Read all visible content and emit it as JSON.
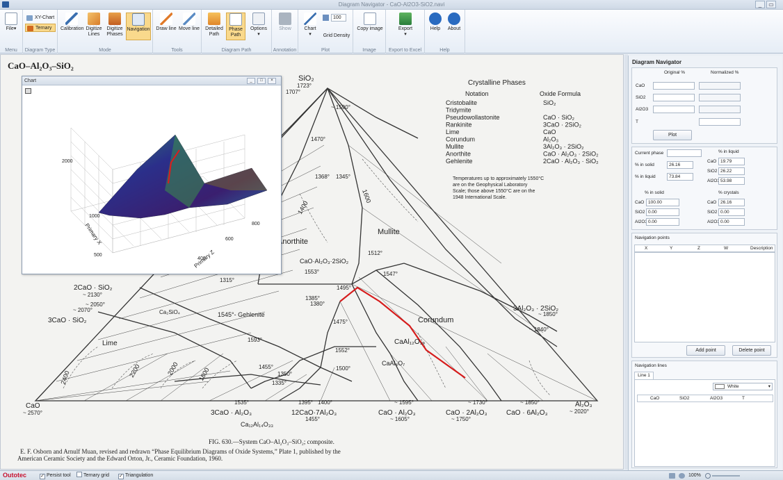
{
  "window": {
    "title": "Diagram Navigator - CaO-Al2O3-SiO2.navi",
    "min": "_",
    "max": "▭"
  },
  "ribbon": {
    "groups": [
      "Menu",
      "Diagram Type",
      "Mode",
      "Tools",
      "Diagram Path",
      "Annotation",
      "Plot",
      "Image",
      "Export to Excel",
      "Help"
    ],
    "file": "File",
    "xy_chart": "XY-Chart",
    "ternary": "Ternary",
    "calibration": "Calibration",
    "digitize_lines": "Digitize Lines",
    "digitize_phases": "Digitize Phases",
    "navigation": "Navigation",
    "draw_line": "Draw line",
    "move_line": "Move line",
    "detailed_path": "Detailed Path",
    "phase_path": "Phase Path",
    "options": "Options",
    "show": "Show",
    "chart": "Chart",
    "grid_density_value": "100",
    "grid_density": "Grid Density",
    "copy_image": "Copy image",
    "export": "Export",
    "help": "Help",
    "about": "About"
  },
  "document": {
    "title": "CaO–Al₂O₃–SiO₂",
    "caption": "FIG. 630.—System CaO–Al₂O₃–SiO₂; composite.",
    "credit1": "E. F. Osborn and Arnulf Muan, revised and redrawn “Phase Equilibrium Diagrams of Oxide Systems,” Plate 1, published by the",
    "credit2": "American Ceramic Society and the Edward Orton, Jr., Ceramic Foundation, 1960.",
    "legend": {
      "heading": "Crystalline Phases",
      "col1": "Notation",
      "col2": "Oxide Formula",
      "rows": [
        [
          "Cristobalite",
          "SiO₂"
        ],
        [
          "Tridymite",
          ""
        ],
        [
          "Pseudowollastonite",
          "CaO · SiO₂"
        ],
        [
          "Rankinite",
          "3CaO · 2SiO₂"
        ],
        [
          "Lime",
          "CaO"
        ],
        [
          "Corundum",
          "Al₂O₃"
        ],
        [
          "Mullite",
          "3Al₂O₃ · 2SiO₂"
        ],
        [
          "Anorthite",
          "CaO · Al₂O₃ · 2SiO₂"
        ],
        [
          "Gehlenite",
          "2CaO · Al₂O₃ · SiO₂"
        ]
      ],
      "note": [
        "Temperatures up to approximately 1550°C",
        "are on the Geophysical Laboratory",
        "Scale; those above 1550°C are on the",
        "1948 International Scale."
      ]
    },
    "labels": {
      "sio2": "SiO₂",
      "sio2_t": "1723°",
      "t1707": "1707°",
      "t1590": "~ 1590°",
      "cao": "CaO",
      "cao_t": "~ 2570°",
      "al2o3": "Al₂O₃",
      "al2o3_t": "~ 2020°",
      "mullite": "Mullite",
      "anorthite": "Anorthite",
      "corundum": "Corundum",
      "lime": "Lime",
      "gehlenite": "1545°- Gehlenite",
      "cas2": "CaO·Al₂O₃·2SiO₂",
      "cs": "2CaO · SiO₂",
      "c3s": "3CaO · SiO₂",
      "c3a": "3CaO · Al₂O₃",
      "c12a7": "12CaO·7Al₂O₃",
      "ca": "CaO · Al₂O₃",
      "ca2": "CaO · 2Al₂O₃",
      "ca6": "CaO · 6Al₂O₃",
      "a3s2": "3Al₂O₃ · 2SiO₂",
      "ca2a": "CaAl₁₂O₁₉",
      "cal4": "CaAl₄O₇",
      "c2s": "Ca₂SiO₄",
      "c12": "Ca₁₂Al₁₄O₃₃",
      "t2130": "~ 2130°",
      "t2050": "~ 2050°",
      "t2070": "~ 2070°",
      "t1850": "~ 1850°",
      "t1840": "~ 1840°",
      "t1730": "~ 1730°",
      "t1750": "~ 1750°",
      "t1605": "~ 1605°",
      "t1595": "~ 1595°",
      "t1535": "1535°",
      "t1395": "1395°",
      "t1400": "1400°",
      "t1455": "1455°",
      "t1512": "1512°",
      "t1547": "1547°",
      "t1495": "1495°",
      "t1385": "1385°",
      "t1380": "1380°",
      "t1475": "1475°",
      "t1552": "1552°",
      "t1500": "1500°",
      "t1553": "1553°",
      "t1315": "1315°",
      "t1368": "1368°",
      "t1345": "1345°",
      "t1470": "1470°",
      "t1593": "1593°",
      "t1335": "1335°",
      "t1350": "1350°",
      "t1455b": "1455°",
      "iso2400": "2400",
      "iso2200": "2200",
      "iso2000": "2000",
      "iso1800": "1800",
      "iso1600": "1600",
      "iso1400": "1400"
    }
  },
  "chart_window": {
    "title": "Chart",
    "min": "_",
    "max": "□",
    "close": "×",
    "z_tick": "2000",
    "x_ticks": [
      "1000",
      "500"
    ],
    "y_ticks": [
      "800",
      "600",
      "400"
    ],
    "x_label": "Primary X",
    "y_label": "Primary Z"
  },
  "panel": {
    "title": "Diagram Navigator",
    "col_original": "Original %",
    "col_normalized": "Normalized %",
    "rows": [
      "CaO",
      "SiO2",
      "Al2O3",
      "T"
    ],
    "plot": "Plot",
    "current_phase": "Current phase",
    "in_solid_label": "% in solid",
    "in_solid": "26.16",
    "in_liquid_label": "% in liquid",
    "in_liquid": "73.84",
    "liquid_head": "% in liquid",
    "liquid": [
      [
        "CaO",
        "19.79"
      ],
      [
        "SiO2",
        "26.22"
      ],
      [
        "Al2O3",
        "53.98"
      ]
    ],
    "solid_head": "% in solid",
    "solid": [
      [
        "CaO",
        "100.00"
      ],
      [
        "SiO2",
        "0.00"
      ],
      [
        "Al2O3",
        "0.00"
      ]
    ],
    "crystals_head": "% crystals",
    "crystals": [
      [
        "CaO",
        "26.16"
      ],
      [
        "SiO2",
        "0.00"
      ],
      [
        "Al2O3",
        "0.00"
      ]
    ],
    "nav_points": "Navigation points",
    "np_cols": [
      "X",
      "Y",
      "Z",
      "W",
      "Description"
    ],
    "add_point": "Add point",
    "delete_point": "Delete point",
    "nav_lines": "Navigation lines",
    "line_tab": "Line 1",
    "color": "White",
    "nl_cols": [
      "CaO",
      "SiO2",
      "Al2O3",
      "T"
    ]
  },
  "status": {
    "brand": "Outotec",
    "persist": "Persist tool",
    "tgrid": "Ternary grid",
    "triang": "Triangulation",
    "zoom": "100%"
  },
  "colors": {
    "path": "#d61c1c",
    "accent": "#2a5b9c",
    "brand": "#c8102e"
  }
}
